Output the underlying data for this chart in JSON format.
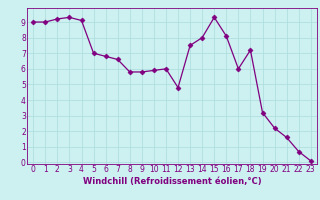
{
  "x": [
    0,
    1,
    2,
    3,
    4,
    5,
    6,
    7,
    8,
    9,
    10,
    11,
    12,
    13,
    14,
    15,
    16,
    17,
    18,
    19,
    20,
    21,
    22,
    23
  ],
  "y": [
    9.0,
    9.0,
    9.2,
    9.3,
    9.1,
    7.0,
    6.8,
    6.6,
    5.8,
    5.8,
    5.9,
    6.0,
    4.8,
    7.5,
    8.0,
    9.3,
    8.1,
    6.0,
    7.2,
    3.2,
    2.2,
    1.6,
    0.7,
    0.1
  ],
  "line_color": "#800080",
  "marker": "D",
  "marker_size": 2.5,
  "bg_color": "#cdf0f0",
  "grid_color": "#aadddd",
  "xlabel": "Windchill (Refroidissement éolien,°C)",
  "xlim": [
    -0.5,
    23.5
  ],
  "ylim": [
    -0.1,
    9.9
  ],
  "yticks": [
    0,
    1,
    2,
    3,
    4,
    5,
    6,
    7,
    8,
    9
  ],
  "xticks": [
    0,
    1,
    2,
    3,
    4,
    5,
    6,
    7,
    8,
    9,
    10,
    11,
    12,
    13,
    14,
    15,
    16,
    17,
    18,
    19,
    20,
    21,
    22,
    23
  ],
  "xlabel_color": "#800080",
  "tick_color": "#800080",
  "axis_color": "#800080",
  "label_fontsize": 6.0,
  "tick_fontsize": 5.5
}
